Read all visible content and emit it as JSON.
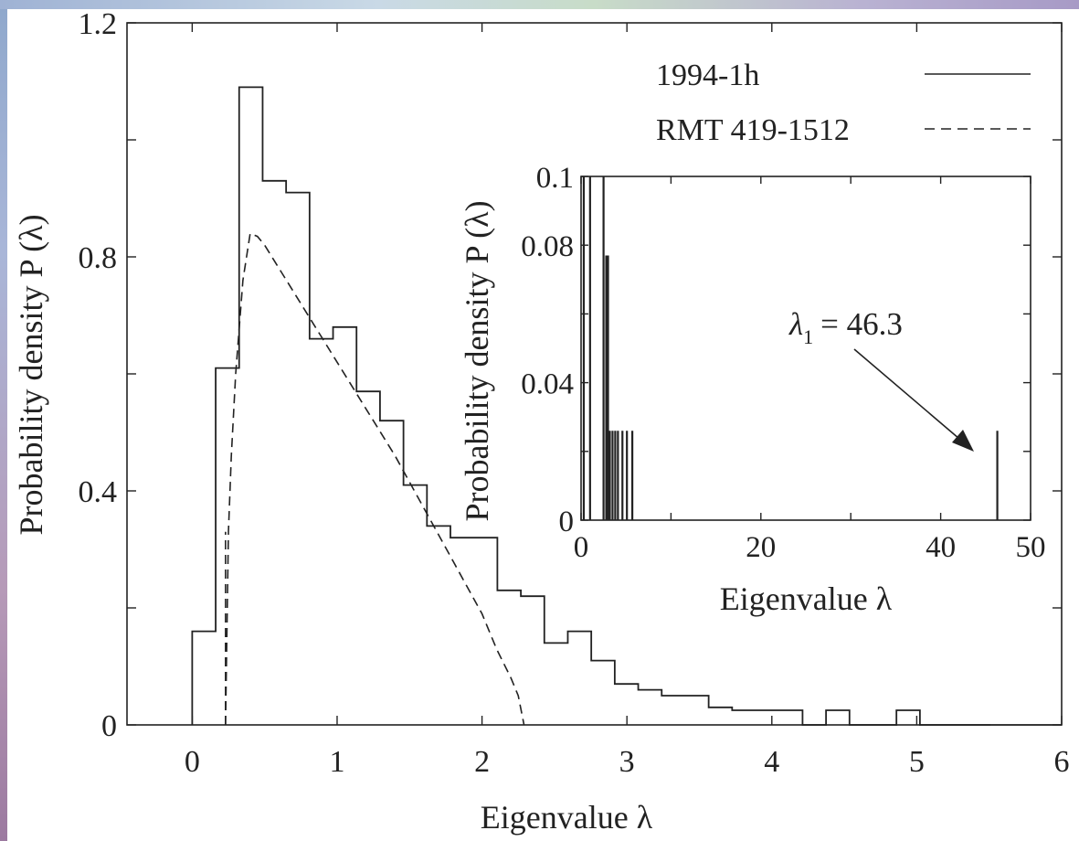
{
  "chart_data": [
    {
      "type": "line",
      "xlabel": "Eigenvalue λ",
      "ylabel": "Probability density P (λ)",
      "xlim": [
        -0.45,
        6
      ],
      "ylim": [
        0,
        1.2
      ],
      "xticks": [
        "0",
        "1",
        "2",
        "3",
        "4",
        "5",
        "6"
      ],
      "yticks": [
        "0",
        "0.4",
        "0.8",
        "1.2"
      ],
      "legend_position": "top-right",
      "series": [
        {
          "name": "1994-1h",
          "style": "solid",
          "kind": "histogram",
          "bin_width": 0.162,
          "x": [
            0.0,
            0.162,
            0.324,
            0.486,
            0.648,
            0.81,
            0.972,
            1.134,
            1.296,
            1.458,
            1.62,
            1.782,
            1.944,
            2.106,
            2.268,
            2.43,
            2.592,
            2.754,
            2.916,
            3.078,
            3.24,
            3.402,
            3.564,
            3.726,
            3.888,
            4.05,
            4.212,
            4.374,
            4.536,
            4.698,
            4.86,
            5.022,
            5.184,
            5.346
          ],
          "y": [
            0.16,
            0.61,
            1.09,
            0.93,
            0.91,
            0.66,
            0.68,
            0.57,
            0.52,
            0.41,
            0.34,
            0.32,
            0.32,
            0.23,
            0.22,
            0.14,
            0.16,
            0.11,
            0.07,
            0.06,
            0.05,
            0.05,
            0.03,
            0.025,
            0.025,
            0.025,
            0.0,
            0.025,
            0.0,
            0.0,
            0.025,
            0.0,
            0.0,
            0.0
          ]
        },
        {
          "name": "RMT 419-1512",
          "style": "dashed",
          "kind": "curve",
          "lambda_min": 0.23,
          "lambda_max": 2.29,
          "x": [
            0.23,
            0.25,
            0.27,
            0.3,
            0.35,
            0.4,
            0.45,
            0.5,
            0.6,
            0.7,
            0.8,
            0.9,
            1.0,
            1.2,
            1.4,
            1.6,
            1.8,
            2.0,
            2.1,
            2.2,
            2.25,
            2.29
          ],
          "y": [
            0.0,
            0.33,
            0.46,
            0.6,
            0.76,
            0.84,
            0.835,
            0.82,
            0.78,
            0.74,
            0.7,
            0.66,
            0.62,
            0.54,
            0.46,
            0.37,
            0.28,
            0.19,
            0.13,
            0.08,
            0.05,
            0.0
          ]
        }
      ]
    },
    {
      "type": "bar",
      "xlabel": "Eigenvalue λ",
      "ylabel": "Probability density P (λ)",
      "xlim": [
        0,
        50
      ],
      "ylim": [
        0,
        0.1
      ],
      "xticks": [
        "0",
        "20",
        "40",
        "50"
      ],
      "yticks": [
        "0",
        "0.04",
        "0.08",
        "0.1"
      ],
      "bars": [
        {
          "x": 0.3,
          "y": 0.1
        },
        {
          "x": 1.0,
          "y": 0.1
        },
        {
          "x": 2.5,
          "y": 0.1
        },
        {
          "x": 2.8,
          "y": 0.077
        },
        {
          "x": 3.0,
          "y": 0.077
        },
        {
          "x": 3.2,
          "y": 0.026
        },
        {
          "x": 3.5,
          "y": 0.026
        },
        {
          "x": 3.8,
          "y": 0.026
        },
        {
          "x": 4.1,
          "y": 0.026
        },
        {
          "x": 4.6,
          "y": 0.026
        },
        {
          "x": 5.1,
          "y": 0.026
        },
        {
          "x": 5.7,
          "y": 0.026
        },
        {
          "x": 46.3,
          "y": 0.026
        }
      ],
      "annotation": {
        "symbol": "λ",
        "subscript": "1",
        "value_text": "= 46.3",
        "points_to_x": 46.3
      }
    }
  ]
}
